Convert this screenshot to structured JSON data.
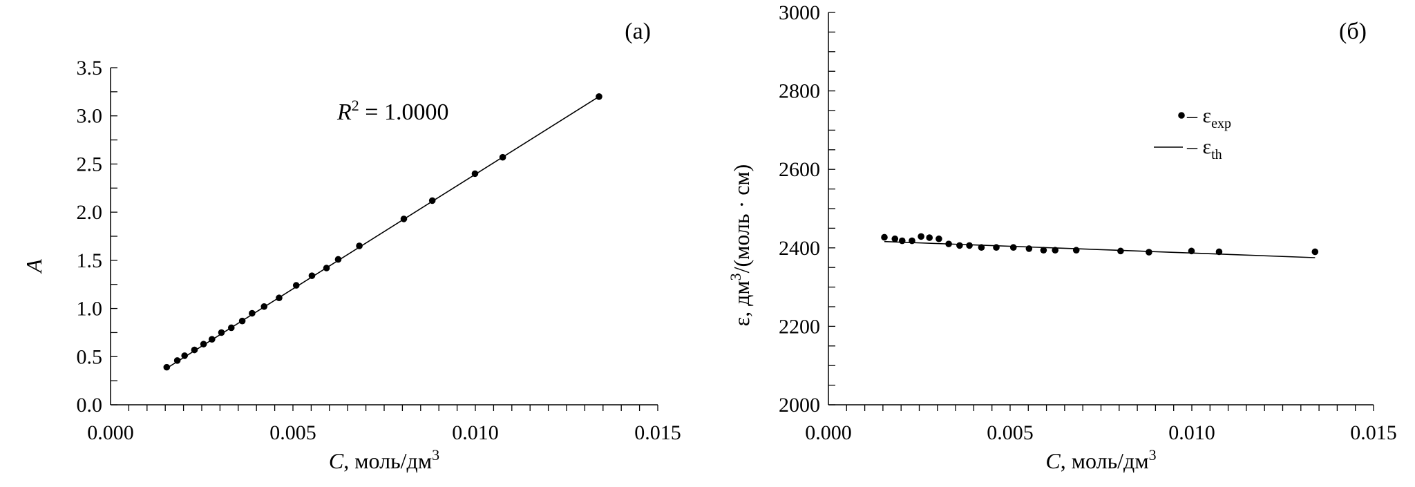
{
  "chart_data": [
    {
      "type": "scatter",
      "panel_label": "(a)",
      "xlabel_var": "C",
      "xlabel_unit": ", моль/дм",
      "xlabel_sup": "3",
      "ylabel": "A",
      "xlim": [
        0,
        0.015
      ],
      "ylim": [
        0,
        3.5
      ],
      "x_ticks": [
        "0.000",
        "0.005",
        "0.010",
        "0.015"
      ],
      "y_ticks": [
        "0.0",
        "0.5",
        "1.0",
        "1.5",
        "2.0",
        "2.5",
        "3.0",
        "3.5"
      ],
      "annotation": {
        "var": "R",
        "sup": "2",
        "text": " = 1.0000"
      },
      "grid": false,
      "series": [
        {
          "marker": "dot",
          "x": [
            0.00154,
            0.00183,
            0.00203,
            0.0023,
            0.00255,
            0.00278,
            0.00304,
            0.00331,
            0.00361,
            0.00388,
            0.00421,
            0.00462,
            0.00509,
            0.00552,
            0.00592,
            0.00624,
            0.00682,
            0.00804,
            0.00882,
            0.00999,
            0.01075,
            0.01339
          ],
          "y": [
            0.39,
            0.46,
            0.51,
            0.57,
            0.63,
            0.68,
            0.75,
            0.8,
            0.87,
            0.95,
            1.02,
            1.11,
            1.24,
            1.34,
            1.42,
            1.51,
            1.65,
            1.93,
            2.12,
            2.4,
            2.57,
            3.2
          ]
        },
        {
          "marker": "line",
          "x": [
            0.00154,
            0.01339
          ],
          "y": [
            0.38,
            3.2
          ]
        }
      ]
    },
    {
      "type": "scatter",
      "panel_label": "(б)",
      "xlabel_var": "C",
      "xlabel_unit": ", моль/дм",
      "xlabel_sup": "3",
      "ylabel_pre": "ε, дм",
      "ylabel_sup": "3",
      "ylabel_post": "/(моль · см)",
      "xlim": [
        0,
        0.015
      ],
      "ylim": [
        2000,
        3000
      ],
      "x_ticks": [
        "0.000",
        "0.005",
        "0.010",
        "0.015"
      ],
      "y_ticks": [
        "2000",
        "2200",
        "2400",
        "2600",
        "2800",
        "3000"
      ],
      "grid": false,
      "legend": [
        {
          "marker": "dot",
          "dash": " – ",
          "symbol": "ε",
          "sub": "exp"
        },
        {
          "marker": "line",
          "dash": " – ",
          "symbol": "ε",
          "sub": "th"
        }
      ],
      "series": [
        {
          "name": "ε_exp",
          "marker": "dot",
          "x": [
            0.00154,
            0.00183,
            0.00203,
            0.0023,
            0.00255,
            0.00278,
            0.00304,
            0.00331,
            0.00361,
            0.00388,
            0.00421,
            0.00462,
            0.00509,
            0.00552,
            0.00592,
            0.00624,
            0.00682,
            0.00804,
            0.00882,
            0.00999,
            0.01075,
            0.01339
          ],
          "y": [
            2427,
            2423,
            2418,
            2418,
            2429,
            2426,
            2423,
            2410,
            2406,
            2406,
            2401,
            2401,
            2401,
            2398,
            2394,
            2394,
            2394,
            2392,
            2389,
            2392,
            2390,
            2390
          ]
        },
        {
          "name": "ε_th",
          "marker": "line",
          "x": [
            0.00154,
            0.01339
          ],
          "y": [
            2416,
            2375
          ]
        }
      ]
    }
  ]
}
